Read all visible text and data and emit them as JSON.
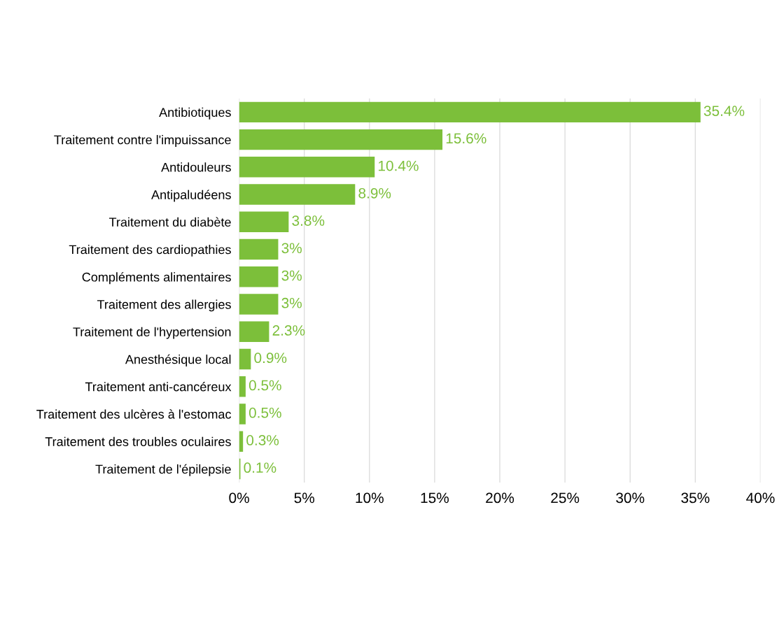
{
  "chart_data": {
    "type": "bar",
    "orientation": "horizontal",
    "categories": [
      "Antibiotiques",
      "Traitement contre l'impuissance",
      "Antidouleurs",
      "Antipaludéens",
      "Traitement du diabète",
      "Traitement des cardiopathies",
      "Compléments alimentaires",
      "Traitement des allergies",
      "Traitement de l'hypertension",
      "Anesthésique local",
      "Traitement anti-cancéreux",
      "Traitement des ulcères à l'estomac",
      "Traitement des troubles oculaires",
      "Traitement de l'épilepsie"
    ],
    "values": [
      35.4,
      15.6,
      10.4,
      8.9,
      3.8,
      3,
      3,
      3,
      2.3,
      0.9,
      0.5,
      0.5,
      0.3,
      0.1
    ],
    "value_labels": [
      "35.4%",
      "15.6%",
      "10.4%",
      "8.9%",
      "3.8%",
      "3%",
      "3%",
      "3%",
      "2.3%",
      "0.9%",
      "0.5%",
      "0.5%",
      "0.3%",
      "0.1%"
    ],
    "color": "#7cbf3a",
    "xlim": [
      0,
      40
    ],
    "xticks": [
      {
        "value": 0,
        "label": "0%"
      },
      {
        "value": 5,
        "label": "5%"
      },
      {
        "value": 10,
        "label": "10%"
      },
      {
        "value": 15,
        "label": "15%"
      },
      {
        "value": 20,
        "label": "20%"
      },
      {
        "value": 25,
        "label": "25%"
      },
      {
        "value": 30,
        "label": "30%"
      },
      {
        "value": 35,
        "label": "35%"
      },
      {
        "value": 40,
        "label": "40%"
      }
    ],
    "grid": "x"
  }
}
